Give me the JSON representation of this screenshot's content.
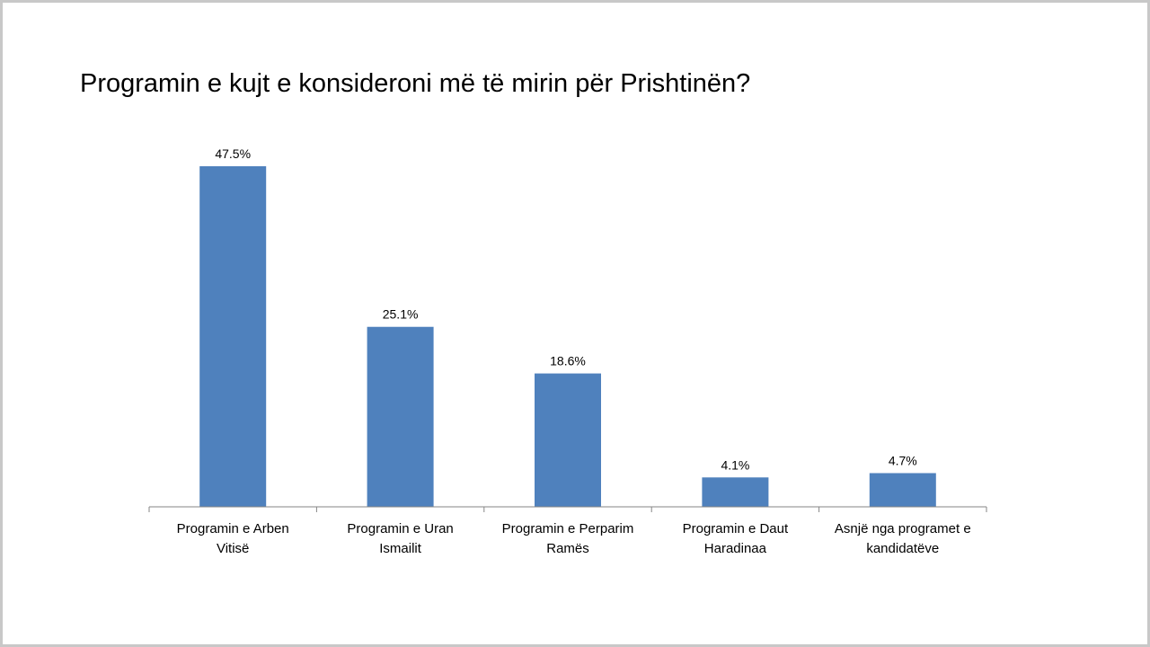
{
  "chart_data": {
    "type": "bar",
    "title": "Programin e kujt e konsideroni më të mirin për Prishtinën?",
    "categories": [
      [
        "Programin e Arben",
        "Vitisë"
      ],
      [
        "Programin e Uran",
        "Ismailit"
      ],
      [
        "Programin e Perparim",
        "Ramës"
      ],
      [
        "Programin e Daut",
        "Haradinaa"
      ],
      [
        "Asnjë nga programet e",
        "kandidatëve"
      ]
    ],
    "values": [
      47.5,
      25.1,
      18.6,
      4.1,
      4.7
    ],
    "data_labels": [
      "47.5%",
      "25.1%",
      "18.6%",
      "4.1%",
      "4.7%"
    ],
    "unit": "%",
    "bar_color": "#4f81bd",
    "grid": false,
    "legend": "none"
  }
}
